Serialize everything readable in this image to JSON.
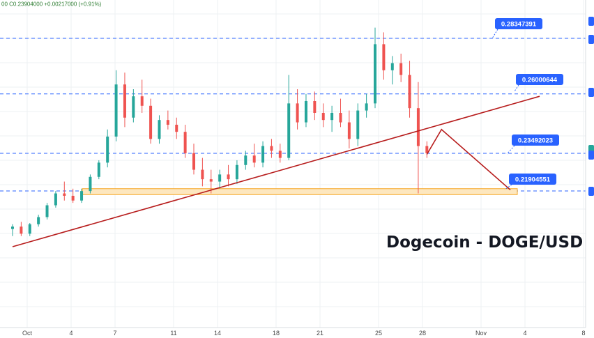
{
  "header": {
    "text": "00  C0.23904000  +0.00217000 (+0.91%)"
  },
  "chart_data": {
    "type": "candlestick",
    "title": "Dogecoin - DOGE/USD",
    "x_tick_labels": [
      "Oct",
      "4",
      "7",
      "11",
      "14",
      "18",
      "21",
      "25",
      "28",
      "Nov",
      "4",
      "8"
    ],
    "levels": [
      {
        "label": "0.28347391",
        "value": 0.28347391
      },
      {
        "label": "0.26000644",
        "value": 0.26000644
      },
      {
        "label": "0.23492023",
        "value": 0.23492023
      },
      {
        "label": "0.21904551",
        "value": 0.21904551
      }
    ],
    "support_zone": {
      "low": 0.2175,
      "high": 0.22
    },
    "trendline": {
      "from": {
        "day": "Sep 30",
        "price": 0.1955
      },
      "to": {
        "day": "Nov 5",
        "price": 0.259
      }
    },
    "projection": [
      {
        "day": "Oct 28.3",
        "price": 0.2345
      },
      {
        "day": "Oct 29.3",
        "price": 0.245
      },
      {
        "day": "Nov 3",
        "price": 0.2195
      }
    ],
    "candles": [
      [
        0.203,
        0.205,
        0.2,
        0.204
      ],
      [
        0.204,
        0.206,
        0.2,
        0.201
      ],
      [
        0.201,
        0.2055,
        0.2,
        0.205
      ],
      [
        0.205,
        0.209,
        0.204,
        0.208
      ],
      [
        0.208,
        0.214,
        0.207,
        0.213
      ],
      [
        0.213,
        0.219,
        0.212,
        0.218
      ],
      [
        0.218,
        0.223,
        0.215,
        0.217
      ],
      [
        0.217,
        0.22,
        0.214,
        0.215
      ],
      [
        0.215,
        0.22,
        0.214,
        0.219
      ],
      [
        0.219,
        0.226,
        0.218,
        0.225
      ],
      [
        0.225,
        0.232,
        0.224,
        0.231
      ],
      [
        0.231,
        0.245,
        0.229,
        0.242
      ],
      [
        0.242,
        0.27,
        0.24,
        0.264
      ],
      [
        0.264,
        0.269,
        0.246,
        0.25
      ],
      [
        0.25,
        0.262,
        0.248,
        0.259
      ],
      [
        0.259,
        0.266,
        0.252,
        0.255
      ],
      [
        0.255,
        0.258,
        0.239,
        0.241
      ],
      [
        0.241,
        0.251,
        0.239,
        0.249
      ],
      [
        0.249,
        0.253,
        0.245,
        0.247
      ],
      [
        0.247,
        0.25,
        0.241,
        0.244
      ],
      [
        0.244,
        0.247,
        0.233,
        0.235
      ],
      [
        0.235,
        0.239,
        0.226,
        0.228
      ],
      [
        0.228,
        0.233,
        0.221,
        0.224
      ],
      [
        0.224,
        0.228,
        0.218,
        0.223
      ],
      [
        0.223,
        0.228,
        0.22,
        0.226
      ],
      [
        0.226,
        0.23,
        0.221,
        0.224
      ],
      [
        0.224,
        0.232,
        0.222,
        0.23
      ],
      [
        0.23,
        0.236,
        0.228,
        0.234
      ],
      [
        0.234,
        0.239,
        0.229,
        0.231
      ],
      [
        0.231,
        0.24,
        0.229,
        0.238
      ],
      [
        0.238,
        0.241,
        0.233,
        0.236
      ],
      [
        0.236,
        0.239,
        0.231,
        0.233
      ],
      [
        0.233,
        0.268,
        0.232,
        0.256
      ],
      [
        0.256,
        0.262,
        0.245,
        0.248
      ],
      [
        0.248,
        0.26,
        0.246,
        0.257
      ],
      [
        0.257,
        0.261,
        0.249,
        0.252
      ],
      [
        0.252,
        0.256,
        0.246,
        0.249
      ],
      [
        0.249,
        0.255,
        0.244,
        0.252
      ],
      [
        0.252,
        0.258,
        0.246,
        0.248
      ],
      [
        0.248,
        0.253,
        0.237,
        0.241
      ],
      [
        0.241,
        0.256,
        0.238,
        0.253
      ],
      [
        0.253,
        0.26,
        0.25,
        0.256
      ],
      [
        0.256,
        0.288,
        0.254,
        0.281
      ],
      [
        0.281,
        0.286,
        0.266,
        0.27
      ],
      [
        0.27,
        0.276,
        0.264,
        0.273
      ],
      [
        0.273,
        0.277,
        0.265,
        0.268
      ],
      [
        0.268,
        0.274,
        0.25,
        0.254
      ],
      [
        0.254,
        0.265,
        0.218,
        0.238
      ],
      [
        0.238,
        0.24,
        0.233,
        0.235
      ]
    ]
  },
  "right_axis_tags": [
    {
      "color": "#2962ff"
    },
    {
      "color": "#2962ff"
    },
    {
      "color": "#26a69a"
    },
    {
      "color": "#2962ff"
    },
    {
      "color": "#2962ff"
    },
    {
      "color": "#2962ff"
    }
  ],
  "colors": {
    "up": "#26a69a",
    "down": "#ef5350",
    "level_line": "#2962ff",
    "trendline": "#b71c1c",
    "zone_fill": "#fde7bf",
    "zone_border": "#f5a623",
    "tag": "#2962ff",
    "grid": "#eef0f3"
  }
}
